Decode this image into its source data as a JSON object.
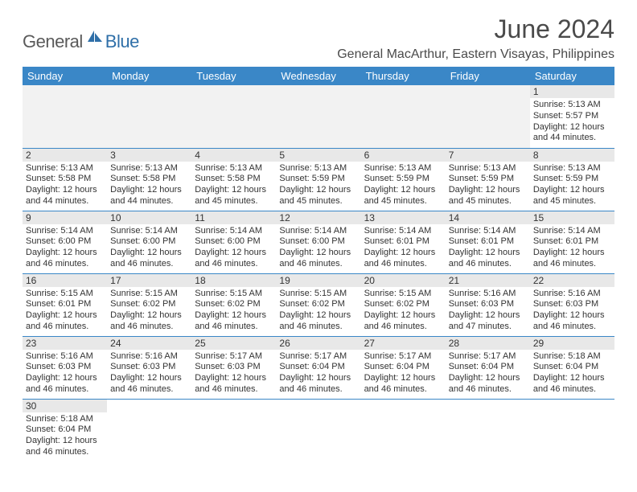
{
  "brand": {
    "part1": "General",
    "part2": "Blue"
  },
  "title": "June 2024",
  "location": "General MacArthur, Eastern Visayas, Philippines",
  "colors": {
    "header_bg": "#3a87c7",
    "header_fg": "#ffffff",
    "daynum_bg": "#e8e8e8",
    "cell_border": "#3a87c7",
    "brand_grey": "#5a5a5a",
    "brand_blue": "#2f6fa8",
    "text": "#333333",
    "empty_bg": "#f2f2f2"
  },
  "weekdays": [
    "Sunday",
    "Monday",
    "Tuesday",
    "Wednesday",
    "Thursday",
    "Friday",
    "Saturday"
  ],
  "weeks": [
    [
      null,
      null,
      null,
      null,
      null,
      null,
      {
        "n": "1",
        "sunrise": "Sunrise: 5:13 AM",
        "sunset": "Sunset: 5:57 PM",
        "daylight": "Daylight: 12 hours and 44 minutes."
      }
    ],
    [
      {
        "n": "2",
        "sunrise": "Sunrise: 5:13 AM",
        "sunset": "Sunset: 5:58 PM",
        "daylight": "Daylight: 12 hours and 44 minutes."
      },
      {
        "n": "3",
        "sunrise": "Sunrise: 5:13 AM",
        "sunset": "Sunset: 5:58 PM",
        "daylight": "Daylight: 12 hours and 44 minutes."
      },
      {
        "n": "4",
        "sunrise": "Sunrise: 5:13 AM",
        "sunset": "Sunset: 5:58 PM",
        "daylight": "Daylight: 12 hours and 45 minutes."
      },
      {
        "n": "5",
        "sunrise": "Sunrise: 5:13 AM",
        "sunset": "Sunset: 5:59 PM",
        "daylight": "Daylight: 12 hours and 45 minutes."
      },
      {
        "n": "6",
        "sunrise": "Sunrise: 5:13 AM",
        "sunset": "Sunset: 5:59 PM",
        "daylight": "Daylight: 12 hours and 45 minutes."
      },
      {
        "n": "7",
        "sunrise": "Sunrise: 5:13 AM",
        "sunset": "Sunset: 5:59 PM",
        "daylight": "Daylight: 12 hours and 45 minutes."
      },
      {
        "n": "8",
        "sunrise": "Sunrise: 5:13 AM",
        "sunset": "Sunset: 5:59 PM",
        "daylight": "Daylight: 12 hours and 45 minutes."
      }
    ],
    [
      {
        "n": "9",
        "sunrise": "Sunrise: 5:14 AM",
        "sunset": "Sunset: 6:00 PM",
        "daylight": "Daylight: 12 hours and 46 minutes."
      },
      {
        "n": "10",
        "sunrise": "Sunrise: 5:14 AM",
        "sunset": "Sunset: 6:00 PM",
        "daylight": "Daylight: 12 hours and 46 minutes."
      },
      {
        "n": "11",
        "sunrise": "Sunrise: 5:14 AM",
        "sunset": "Sunset: 6:00 PM",
        "daylight": "Daylight: 12 hours and 46 minutes."
      },
      {
        "n": "12",
        "sunrise": "Sunrise: 5:14 AM",
        "sunset": "Sunset: 6:00 PM",
        "daylight": "Daylight: 12 hours and 46 minutes."
      },
      {
        "n": "13",
        "sunrise": "Sunrise: 5:14 AM",
        "sunset": "Sunset: 6:01 PM",
        "daylight": "Daylight: 12 hours and 46 minutes."
      },
      {
        "n": "14",
        "sunrise": "Sunrise: 5:14 AM",
        "sunset": "Sunset: 6:01 PM",
        "daylight": "Daylight: 12 hours and 46 minutes."
      },
      {
        "n": "15",
        "sunrise": "Sunrise: 5:14 AM",
        "sunset": "Sunset: 6:01 PM",
        "daylight": "Daylight: 12 hours and 46 minutes."
      }
    ],
    [
      {
        "n": "16",
        "sunrise": "Sunrise: 5:15 AM",
        "sunset": "Sunset: 6:01 PM",
        "daylight": "Daylight: 12 hours and 46 minutes."
      },
      {
        "n": "17",
        "sunrise": "Sunrise: 5:15 AM",
        "sunset": "Sunset: 6:02 PM",
        "daylight": "Daylight: 12 hours and 46 minutes."
      },
      {
        "n": "18",
        "sunrise": "Sunrise: 5:15 AM",
        "sunset": "Sunset: 6:02 PM",
        "daylight": "Daylight: 12 hours and 46 minutes."
      },
      {
        "n": "19",
        "sunrise": "Sunrise: 5:15 AM",
        "sunset": "Sunset: 6:02 PM",
        "daylight": "Daylight: 12 hours and 46 minutes."
      },
      {
        "n": "20",
        "sunrise": "Sunrise: 5:15 AM",
        "sunset": "Sunset: 6:02 PM",
        "daylight": "Daylight: 12 hours and 46 minutes."
      },
      {
        "n": "21",
        "sunrise": "Sunrise: 5:16 AM",
        "sunset": "Sunset: 6:03 PM",
        "daylight": "Daylight: 12 hours and 47 minutes."
      },
      {
        "n": "22",
        "sunrise": "Sunrise: 5:16 AM",
        "sunset": "Sunset: 6:03 PM",
        "daylight": "Daylight: 12 hours and 46 minutes."
      }
    ],
    [
      {
        "n": "23",
        "sunrise": "Sunrise: 5:16 AM",
        "sunset": "Sunset: 6:03 PM",
        "daylight": "Daylight: 12 hours and 46 minutes."
      },
      {
        "n": "24",
        "sunrise": "Sunrise: 5:16 AM",
        "sunset": "Sunset: 6:03 PM",
        "daylight": "Daylight: 12 hours and 46 minutes."
      },
      {
        "n": "25",
        "sunrise": "Sunrise: 5:17 AM",
        "sunset": "Sunset: 6:03 PM",
        "daylight": "Daylight: 12 hours and 46 minutes."
      },
      {
        "n": "26",
        "sunrise": "Sunrise: 5:17 AM",
        "sunset": "Sunset: 6:04 PM",
        "daylight": "Daylight: 12 hours and 46 minutes."
      },
      {
        "n": "27",
        "sunrise": "Sunrise: 5:17 AM",
        "sunset": "Sunset: 6:04 PM",
        "daylight": "Daylight: 12 hours and 46 minutes."
      },
      {
        "n": "28",
        "sunrise": "Sunrise: 5:17 AM",
        "sunset": "Sunset: 6:04 PM",
        "daylight": "Daylight: 12 hours and 46 minutes."
      },
      {
        "n": "29",
        "sunrise": "Sunrise: 5:18 AM",
        "sunset": "Sunset: 6:04 PM",
        "daylight": "Daylight: 12 hours and 46 minutes."
      }
    ],
    [
      {
        "n": "30",
        "sunrise": "Sunrise: 5:18 AM",
        "sunset": "Sunset: 6:04 PM",
        "daylight": "Daylight: 12 hours and 46 minutes."
      },
      null,
      null,
      null,
      null,
      null,
      null
    ]
  ]
}
